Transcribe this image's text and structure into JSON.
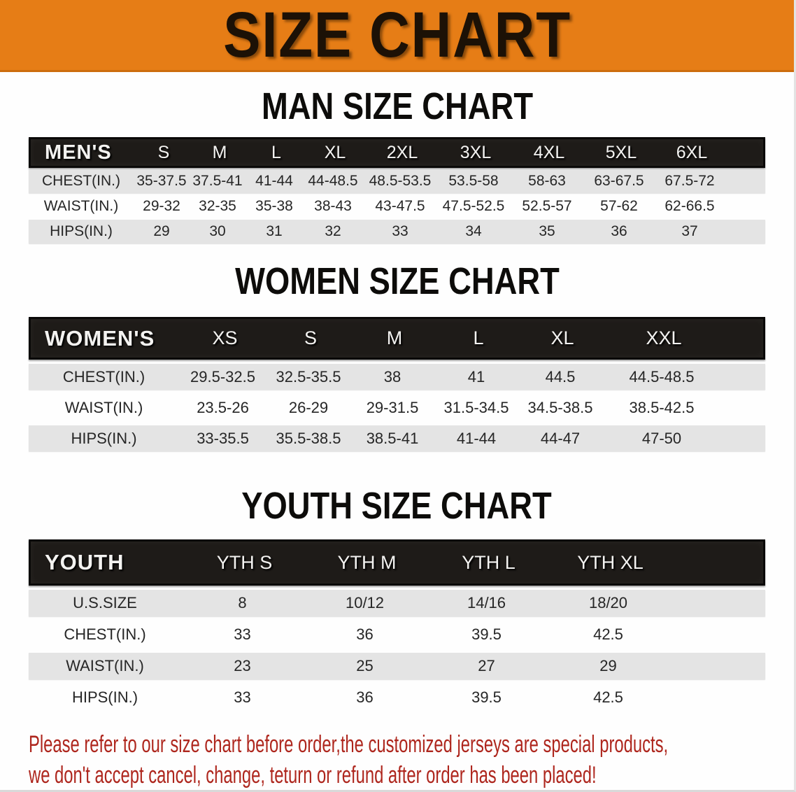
{
  "banner": {
    "title": "SIZE CHART"
  },
  "colors": {
    "banner_orange": "#e67d16",
    "header_bar_black": "#1e1b18",
    "row_gray": "#e4e4e4",
    "disclaimer_red": "#ae261d"
  },
  "men": {
    "heading": "MAN SIZE CHART",
    "group_label": "MEN'S",
    "sizes": [
      "S",
      "M",
      "L",
      "XL",
      "2XL",
      "3XL",
      "4XL",
      "5XL",
      "6XL"
    ],
    "rows": [
      {
        "label": "CHEST(IN.)",
        "values": [
          "35-37.5",
          "37.5-41",
          "41-44",
          "44-48.5",
          "48.5-53.5",
          "53.5-58",
          "58-63",
          "63-67.5",
          "67.5-72"
        ]
      },
      {
        "label": "WAIST(IN.)",
        "values": [
          "29-32",
          "32-35",
          "35-38",
          "38-43",
          "43-47.5",
          "47.5-52.5",
          "52.5-57",
          "57-62",
          "62-66.5"
        ]
      },
      {
        "label": "HIPS(IN.)",
        "values": [
          "29",
          "30",
          "31",
          "32",
          "33",
          "34",
          "35",
          "36",
          "37"
        ]
      }
    ]
  },
  "women": {
    "heading": "WOMEN SIZE CHART",
    "group_label": "WOMEN'S",
    "sizes": [
      "XS",
      "S",
      "M",
      "L",
      "XL",
      "XXL"
    ],
    "rows": [
      {
        "label": "CHEST(IN.)",
        "values": [
          "29.5-32.5",
          "32.5-35.5",
          "38",
          "41",
          "44.5",
          "44.5-48.5"
        ]
      },
      {
        "label": "WAIST(IN.)",
        "values": [
          "23.5-26",
          "26-29",
          "29-31.5",
          "31.5-34.5",
          "34.5-38.5",
          "38.5-42.5"
        ]
      },
      {
        "label": "HIPS(IN.)",
        "values": [
          "33-35.5",
          "35.5-38.5",
          "38.5-41",
          "41-44",
          "44-47",
          "47-50"
        ]
      }
    ]
  },
  "youth": {
    "heading": "YOUTH SIZE CHART",
    "group_label": "YOUTH",
    "sizes": [
      "YTH S",
      "YTH M",
      "YTH L",
      "YTH XL"
    ],
    "rows": [
      {
        "label": "U.S.SIZE",
        "values": [
          "8",
          "10/12",
          "14/16",
          "18/20"
        ]
      },
      {
        "label": "CHEST(IN.)",
        "values": [
          "33",
          "36",
          "39.5",
          "42.5"
        ]
      },
      {
        "label": "WAIST(IN.)",
        "values": [
          "23",
          "25",
          "27",
          "29"
        ]
      },
      {
        "label": "HIPS(IN.)",
        "values": [
          "33",
          "36",
          "39.5",
          "42.5"
        ]
      }
    ]
  },
  "disclaimer": {
    "line1": "Please refer to our size chart before order,the customized jerseys are special products,",
    "line2": "we don't accept cancel, change, teturn or refund after order has been placed!"
  }
}
